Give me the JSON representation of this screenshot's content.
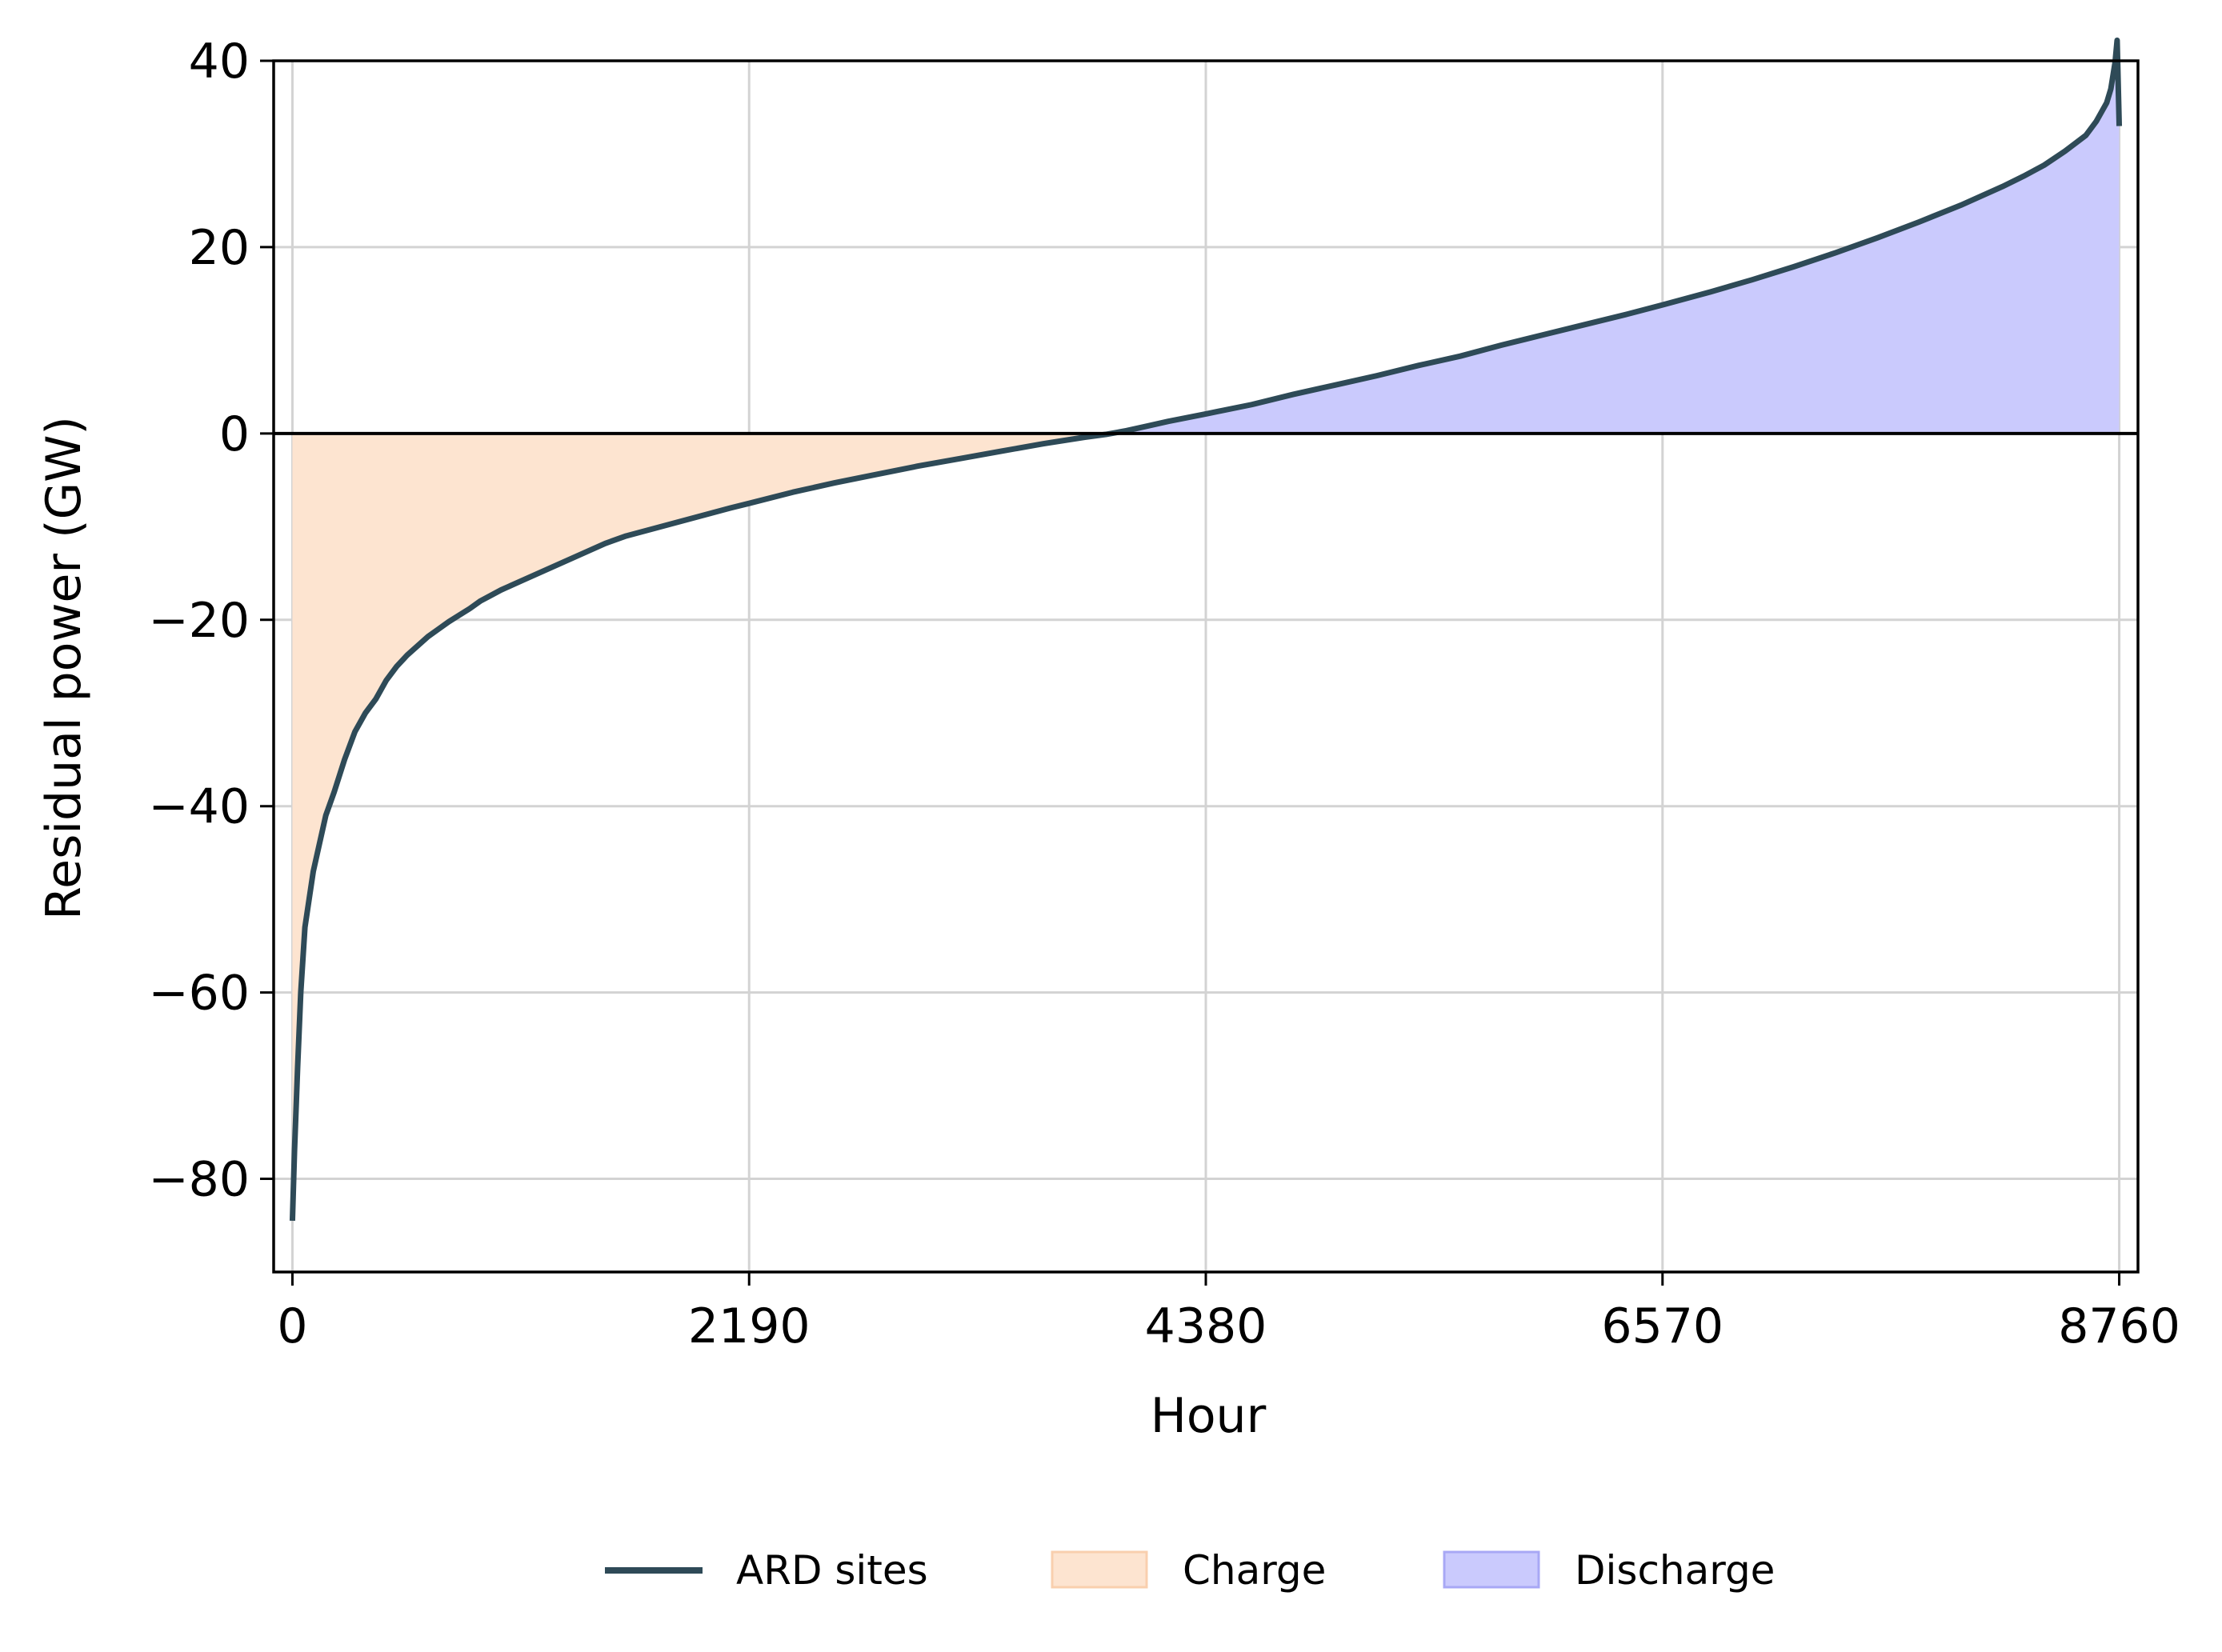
{
  "chart_data": {
    "type": "area",
    "xlabel": "Hour",
    "ylabel": "Residual power (GW)",
    "xlim": [
      -90,
      8850
    ],
    "ylim": [
      -90,
      40
    ],
    "xticks": [
      0,
      2190,
      4380,
      6570,
      8760
    ],
    "xtick_labels": [
      "0",
      "2190",
      "4380",
      "6570",
      "8760"
    ],
    "yticks": [
      -80,
      -60,
      -40,
      -20,
      0,
      20,
      40
    ],
    "ytick_labels": [
      "−80",
      "−60",
      "−40",
      "−20",
      "0",
      "20",
      "40"
    ],
    "grid": true,
    "zero_line": true,
    "legend_position": "bottom-center",
    "series": [
      {
        "name": "ARD sites",
        "kind": "line",
        "color": "#2e4a57",
        "x": [
          0,
          10,
          25,
          40,
          60,
          80,
          100,
          130,
          160,
          200,
          250,
          300,
          350,
          400,
          450,
          500,
          550,
          600,
          650,
          700,
          750,
          800,
          850,
          900,
          950,
          1000,
          1100,
          1200,
          1300,
          1400,
          1500,
          1600,
          1700,
          1800,
          1900,
          2000,
          2100,
          2190,
          2400,
          2600,
          2800,
          3000,
          3200,
          3400,
          3600,
          3800,
          3900,
          4000,
          4100,
          4200,
          4380,
          4600,
          4800,
          5000,
          5200,
          5400,
          5600,
          5800,
          6000,
          6200,
          6400,
          6570,
          6800,
          7000,
          7200,
          7400,
          7600,
          7800,
          8000,
          8200,
          8300,
          8400,
          8500,
          8600,
          8650,
          8700,
          8720,
          8740,
          8750,
          8760
        ],
        "y": [
          -84.5,
          -77,
          -68,
          -60,
          -53,
          -50,
          -47,
          -44,
          -41,
          -38.5,
          -35,
          -32,
          -30,
          -28.5,
          -26.5,
          -25,
          -23.8,
          -22.8,
          -21.8,
          -21,
          -20.2,
          -19.5,
          -18.8,
          -18,
          -17.4,
          -16.8,
          -15.8,
          -14.8,
          -13.8,
          -12.8,
          -11.8,
          -11,
          -10.4,
          -9.8,
          -9.2,
          -8.6,
          -8,
          -7.5,
          -6.3,
          -5.3,
          -4.4,
          -3.5,
          -2.7,
          -1.9,
          -1.1,
          -0.4,
          -0.1,
          0.3,
          0.8,
          1.3,
          2.1,
          3.1,
          4.2,
          5.2,
          6.2,
          7.3,
          8.3,
          9.5,
          10.6,
          11.7,
          12.8,
          13.8,
          15.2,
          16.5,
          17.9,
          19.4,
          21,
          22.7,
          24.5,
          26.5,
          27.6,
          28.8,
          30.3,
          32,
          33.5,
          35.5,
          37,
          39.8,
          42.2,
          33
        ]
      },
      {
        "name": "Charge",
        "kind": "fill-below-zero",
        "color": "#fde4d0"
      },
      {
        "name": "Discharge",
        "kind": "fill-above-zero",
        "color": "#cacafd"
      }
    ]
  }
}
